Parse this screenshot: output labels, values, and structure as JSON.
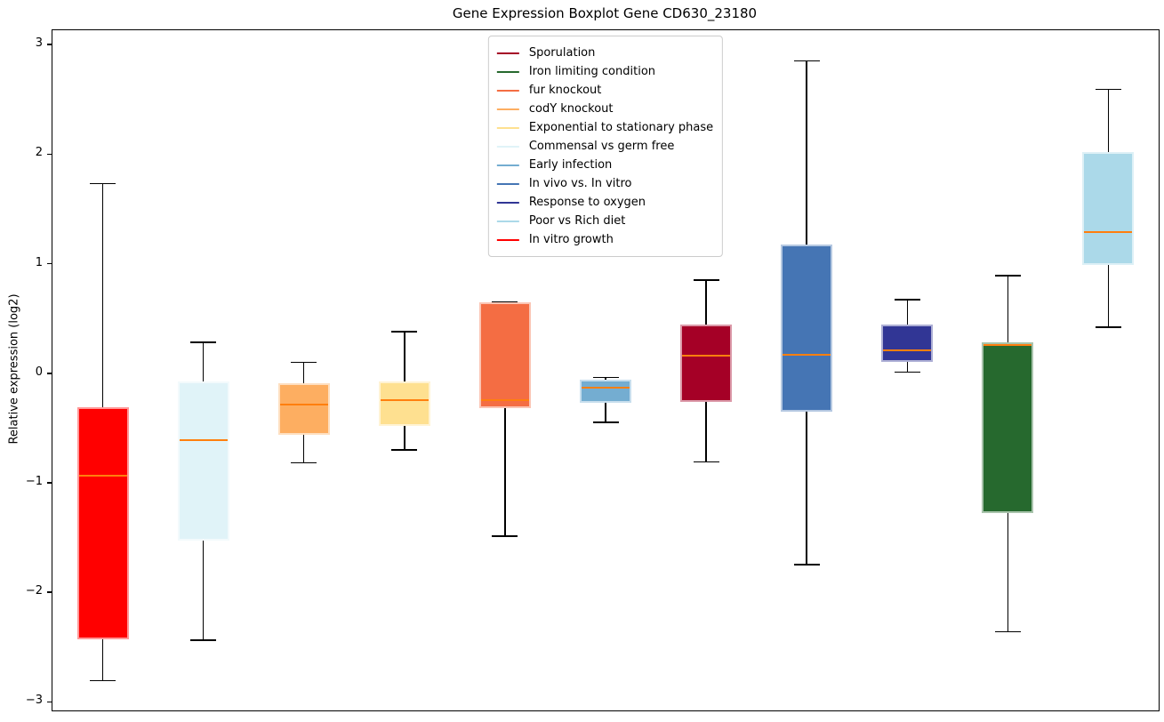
{
  "title": "Gene Expression Boxplot Gene CD630_23180",
  "axes": {
    "ylabel": "Relative expression (log2)",
    "ytick_values": [
      3,
      2,
      1,
      0,
      -1,
      -2,
      -3
    ],
    "ytick_labels": [
      "3",
      "2",
      "1",
      "0",
      "−1",
      "−2",
      "−3"
    ]
  },
  "legend": {
    "entries": [
      {
        "label": "Sporulation",
        "color": "#a50026"
      },
      {
        "label": "Iron limiting condition",
        "color": "#26692e"
      },
      {
        "label": "fur knockout",
        "color": "#f46d43"
      },
      {
        "label": "codY knockout",
        "color": "#fdae61"
      },
      {
        "label": "Exponential to stationary phase",
        "color": "#fee090"
      },
      {
        "label": "Commensal vs germ free",
        "color": "#e0f3f8"
      },
      {
        "label": "Early infection",
        "color": "#74add1"
      },
      {
        "label": "In vivo vs. In vitro",
        "color": "#4575b4"
      },
      {
        "label": "Response to oxygen",
        "color": "#313695"
      },
      {
        "label": "Poor vs Rich diet",
        "color": "#abd9e9"
      },
      {
        "label": "In vitro growth",
        "color": "#ff0000"
      }
    ]
  },
  "chart_data": {
    "type": "boxplot",
    "title": "Gene Expression Boxplot Gene CD630_23180",
    "xlabel": "",
    "ylabel": "Relative expression (log2)",
    "ylim": [
      -3.07,
      3.14
    ],
    "grid": false,
    "legend_position": "upper center",
    "median_color": "#ff7f0e",
    "whisker_color": "#000000",
    "categories": [
      "In vitro growth",
      "Commensal vs germ free",
      "codY knockout",
      "Exponential to stationary phase",
      "fur knockout",
      "Early infection",
      "Sporulation",
      "In vivo vs. In vitro",
      "Response to oxygen",
      "Iron limiting condition",
      "Poor vs Rich diet"
    ],
    "boxes": [
      {
        "condition": "In vitro growth",
        "color": "#ff0000",
        "whislo": -2.8,
        "q1": -2.42,
        "med": -0.93,
        "q3": -0.3,
        "whishi": 1.74
      },
      {
        "condition": "Commensal vs germ free",
        "color": "#e0f3f8",
        "whislo": -2.43,
        "q1": -1.52,
        "med": -0.6,
        "q3": -0.07,
        "whishi": 0.29
      },
      {
        "condition": "codY knockout",
        "color": "#fdae61",
        "whislo": -0.81,
        "q1": -0.55,
        "med": -0.28,
        "q3": -0.08,
        "whishi": 0.11
      },
      {
        "condition": "Exponential to stationary phase",
        "color": "#fee090",
        "whislo": -0.69,
        "q1": -0.47,
        "med": -0.24,
        "q3": -0.07,
        "whishi": 0.39
      },
      {
        "condition": "fur knockout",
        "color": "#f46d43",
        "whislo": -1.48,
        "q1": -0.31,
        "med": -0.24,
        "q3": 0.66,
        "whishi": 0.66
      },
      {
        "condition": "Early infection",
        "color": "#74add1",
        "whislo": -0.44,
        "q1": -0.26,
        "med": -0.12,
        "q3": -0.05,
        "whishi": -0.03
      },
      {
        "condition": "Sporulation",
        "color": "#a50026",
        "whislo": -0.8,
        "q1": -0.25,
        "med": 0.17,
        "q3": 0.45,
        "whishi": 0.86
      },
      {
        "condition": "In vivo vs. In vitro",
        "color": "#4575b4",
        "whislo": -1.74,
        "q1": -0.34,
        "med": 0.18,
        "q3": 1.18,
        "whishi": 2.86
      },
      {
        "condition": "Response to oxygen",
        "color": "#313695",
        "whislo": 0.02,
        "q1": 0.11,
        "med": 0.22,
        "q3": 0.45,
        "whishi": 0.68
      },
      {
        "condition": "Iron limiting condition",
        "color": "#26692e",
        "whislo": -2.35,
        "q1": -1.27,
        "med": 0.27,
        "q3": 0.29,
        "whishi": 0.9
      },
      {
        "condition": "Poor vs Rich diet",
        "color": "#abd9e9",
        "whislo": 0.43,
        "q1": 1.0,
        "med": 1.3,
        "q3": 2.03,
        "whishi": 2.6
      }
    ]
  }
}
